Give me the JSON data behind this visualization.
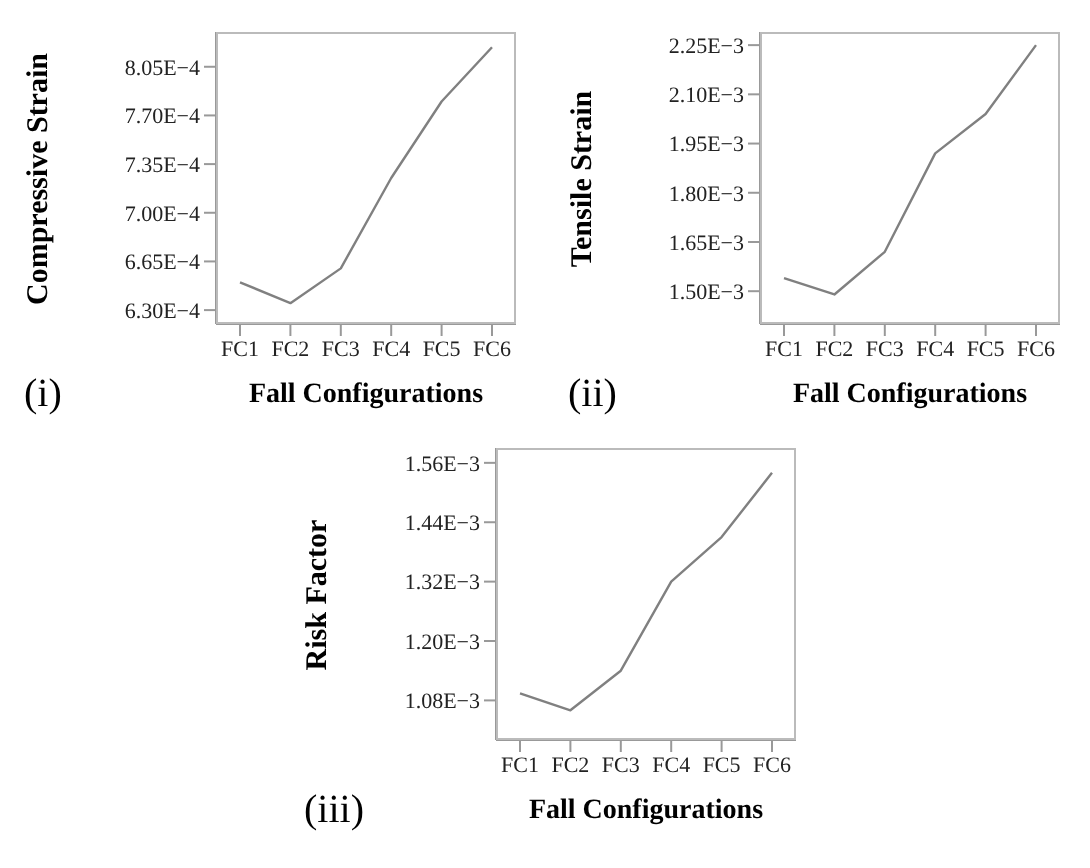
{
  "chart_data": [
    {
      "type": "line",
      "categories": [
        "FC1",
        "FC2",
        "FC3",
        "FC4",
        "FC5",
        "FC6"
      ],
      "ylabel": "Compressive Strain",
      "xlabel": "Fall Configurations",
      "annotations": [
        "(i)"
      ],
      "series": [
        {
          "color": "#808080",
          "values": [
            0.00065,
            0.000635,
            0.00066,
            0.000725,
            0.00078,
            0.000819
          ]
        }
      ],
      "ylim": [
        0.00062,
        0.00083
      ],
      "yticks": [
        {
          "value": 0.00063,
          "label": "6.30E−4"
        },
        {
          "value": 0.000665,
          "label": "6.65E−4"
        },
        {
          "value": 0.0007,
          "label": "7.00E−4"
        },
        {
          "value": 0.000735,
          "label": "7.35E−4"
        },
        {
          "value": 0.00077,
          "label": "7.70E−4"
        },
        {
          "value": 0.000805,
          "label": "8.05E−4"
        }
      ],
      "grid": false,
      "legend": false,
      "marker": "none",
      "line_style": "solid"
    },
    {
      "type": "line",
      "categories": [
        "FC1",
        "FC2",
        "FC3",
        "FC4",
        "FC5",
        "FC6"
      ],
      "ylabel": "Tensile Strain",
      "xlabel": "Fall Configurations",
      "annotations": [
        "(ii)"
      ],
      "series": [
        {
          "color": "#808080",
          "values": [
            0.00154,
            0.00149,
            0.00162,
            0.00192,
            0.00204,
            0.00225
          ]
        }
      ],
      "ylim": [
        0.0014,
        0.00229
      ],
      "yticks": [
        {
          "value": 0.0015,
          "label": "1.50E−3"
        },
        {
          "value": 0.00165,
          "label": "1.65E−3"
        },
        {
          "value": 0.0018,
          "label": "1.80E−3"
        },
        {
          "value": 0.00195,
          "label": "1.95E−3"
        },
        {
          "value": 0.0021,
          "label": "2.10E−3"
        },
        {
          "value": 0.00225,
          "label": "2.25E−3"
        }
      ],
      "grid": false,
      "legend": false,
      "marker": "none",
      "line_style": "solid"
    },
    {
      "type": "line",
      "categories": [
        "FC1",
        "FC2",
        "FC3",
        "FC4",
        "FC5",
        "FC6"
      ],
      "ylabel": "Risk Factor",
      "xlabel": "Fall Configurations",
      "annotations": [
        "(iii)"
      ],
      "series": [
        {
          "color": "#808080",
          "values": [
            0.001094,
            0.00106,
            0.00114,
            0.00132,
            0.00141,
            0.00154
          ]
        }
      ],
      "ylim": [
        0.001,
        0.00159
      ],
      "yticks": [
        {
          "value": 0.00108,
          "label": "1.08E−3"
        },
        {
          "value": 0.0012,
          "label": "1.20E−3"
        },
        {
          "value": 0.00132,
          "label": "1.32E−3"
        },
        {
          "value": 0.00144,
          "label": "1.44E−3"
        },
        {
          "value": 0.00156,
          "label": "1.56E−3"
        }
      ],
      "grid": false,
      "legend": false,
      "marker": "none",
      "line_style": "solid"
    }
  ]
}
